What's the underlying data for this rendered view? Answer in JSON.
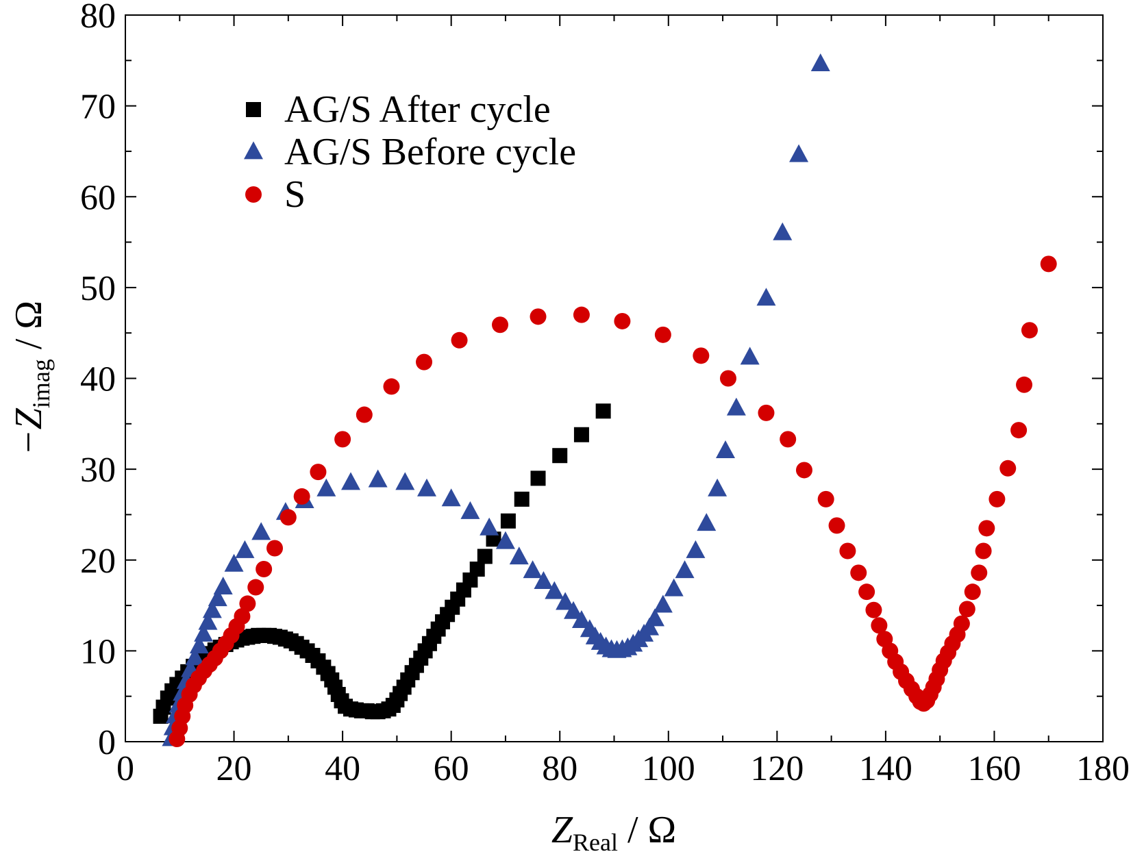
{
  "chart_data": {
    "type": "scatter",
    "title": "",
    "xlabel": {
      "main": "Z",
      "sub": "Real",
      "unit": " / Ω"
    },
    "ylabel": {
      "prefix": "−Z",
      "sub": "imag",
      "unit": " / Ω"
    },
    "xlim": [
      0,
      180
    ],
    "ylim": [
      0,
      80
    ],
    "xticks": [
      0,
      20,
      40,
      60,
      80,
      100,
      120,
      140,
      160,
      180
    ],
    "yticks": [
      0,
      10,
      20,
      30,
      40,
      50,
      60,
      70,
      80
    ],
    "grid": false,
    "legend_position": "top-left",
    "series": [
      {
        "name": "AG/S After cycle",
        "marker": "square",
        "color": "#000000",
        "points": [
          [
            6.5,
            2.8
          ],
          [
            7,
            3.8
          ],
          [
            7.8,
            4.8
          ],
          [
            8.6,
            5.6
          ],
          [
            9.5,
            6.3
          ],
          [
            10.5,
            7.0
          ],
          [
            11.5,
            7.7
          ],
          [
            12.5,
            8.3
          ],
          [
            13.5,
            8.8
          ],
          [
            14.5,
            9.3
          ],
          [
            15.5,
            9.7
          ],
          [
            16.5,
            10.1
          ],
          [
            17.5,
            10.4
          ],
          [
            18.5,
            10.7
          ],
          [
            19.5,
            11.0
          ],
          [
            20.5,
            11.2
          ],
          [
            21.5,
            11.4
          ],
          [
            22.5,
            11.5
          ],
          [
            23.5,
            11.6
          ],
          [
            24.5,
            11.7
          ],
          [
            25.5,
            11.7
          ],
          [
            26.5,
            11.7
          ],
          [
            27.5,
            11.6
          ],
          [
            28.5,
            11.5
          ],
          [
            29.5,
            11.3
          ],
          [
            30.5,
            11.1
          ],
          [
            31.5,
            10.8
          ],
          [
            32.5,
            10.4
          ],
          [
            33.5,
            10.0
          ],
          [
            34.5,
            9.5
          ],
          [
            35.5,
            8.9
          ],
          [
            36.5,
            8.2
          ],
          [
            37.3,
            7.5
          ],
          [
            38.0,
            6.8
          ],
          [
            38.6,
            6.0
          ],
          [
            39.2,
            5.2
          ],
          [
            39.8,
            4.5
          ],
          [
            40.5,
            3.9
          ],
          [
            41.5,
            3.6
          ],
          [
            42.5,
            3.5
          ],
          [
            43.5,
            3.4
          ],
          [
            44.5,
            3.4
          ],
          [
            45.5,
            3.3
          ],
          [
            46.5,
            3.3
          ],
          [
            47.5,
            3.4
          ],
          [
            48.5,
            3.6
          ],
          [
            49.3,
            4.0
          ],
          [
            50.0,
            4.6
          ],
          [
            50.6,
            5.3
          ],
          [
            51.3,
            6.0
          ],
          [
            52.0,
            6.8
          ],
          [
            52.8,
            7.6
          ],
          [
            53.6,
            8.4
          ],
          [
            54.4,
            9.2
          ],
          [
            55.2,
            10.0
          ],
          [
            56.0,
            10.8
          ],
          [
            56.8,
            11.6
          ],
          [
            57.6,
            12.4
          ],
          [
            58.4,
            13.2
          ],
          [
            59.3,
            14.0
          ],
          [
            60.2,
            14.8
          ],
          [
            61.2,
            15.7
          ],
          [
            62.3,
            16.7
          ],
          [
            63.5,
            17.8
          ],
          [
            64.8,
            19.0
          ],
          [
            66.2,
            20.4
          ],
          [
            67.8,
            22.3
          ],
          [
            70.5,
            24.3
          ],
          [
            73.0,
            26.7
          ],
          [
            76.0,
            29.0
          ],
          [
            80.0,
            31.5
          ],
          [
            84.0,
            33.8
          ],
          [
            88.0,
            36.4
          ]
        ]
      },
      {
        "name": "AG/S Before cycle",
        "marker": "triangle",
        "color": "#2e4a9c",
        "points": [
          [
            8.5,
            0.3
          ],
          [
            8.8,
            1.5
          ],
          [
            9.2,
            2.8
          ],
          [
            9.8,
            4.0
          ],
          [
            10.5,
            5.3
          ],
          [
            11.2,
            6.6
          ],
          [
            12.0,
            7.9
          ],
          [
            12.8,
            9.2
          ],
          [
            13.6,
            10.5
          ],
          [
            14.4,
            11.8
          ],
          [
            15.2,
            13.1
          ],
          [
            16.0,
            14.4
          ],
          [
            17.0,
            15.7
          ],
          [
            18.0,
            17.0
          ],
          [
            20.0,
            19.5
          ],
          [
            22.0,
            21.0
          ],
          [
            25.0,
            23.0
          ],
          [
            29.5,
            25.2
          ],
          [
            33.0,
            26.5
          ],
          [
            37.0,
            27.8
          ],
          [
            41.5,
            28.5
          ],
          [
            46.5,
            28.8
          ],
          [
            51.5,
            28.5
          ],
          [
            55.5,
            27.8
          ],
          [
            60.0,
            26.7
          ],
          [
            63.5,
            25.3
          ],
          [
            67.0,
            23.5
          ],
          [
            70.0,
            22.0
          ],
          [
            72.5,
            20.3
          ],
          [
            75.0,
            18.8
          ],
          [
            77.0,
            17.6
          ],
          [
            79.0,
            16.5
          ],
          [
            81.0,
            15.3
          ],
          [
            82.5,
            14.3
          ],
          [
            84.0,
            13.3
          ],
          [
            85.5,
            12.3
          ],
          [
            86.5,
            11.5
          ],
          [
            87.5,
            10.9
          ],
          [
            88.5,
            10.4
          ],
          [
            89.5,
            10.1
          ],
          [
            90.5,
            10.0
          ],
          [
            91.5,
            10.1
          ],
          [
            92.5,
            10.3
          ],
          [
            93.5,
            10.7
          ],
          [
            94.5,
            11.2
          ],
          [
            95.5,
            11.8
          ],
          [
            96.5,
            12.5
          ],
          [
            97.5,
            13.5
          ],
          [
            99.0,
            15.0
          ],
          [
            101.0,
            16.8
          ],
          [
            103.0,
            18.8
          ],
          [
            105.0,
            21.0
          ],
          [
            107.0,
            24.0
          ],
          [
            109.0,
            27.8
          ],
          [
            110.5,
            32.0
          ],
          [
            112.5,
            36.7
          ],
          [
            115.0,
            42.3
          ],
          [
            118.0,
            48.8
          ],
          [
            121.0,
            56.0
          ],
          [
            124.0,
            64.6
          ],
          [
            128.0,
            74.6
          ]
        ]
      },
      {
        "name": "S",
        "marker": "circle",
        "color": "#d40000",
        "points": [
          [
            9.5,
            0.3
          ],
          [
            10.0,
            1.5
          ],
          [
            10.5,
            2.8
          ],
          [
            11.0,
            4.0
          ],
          [
            11.8,
            5.2
          ],
          [
            12.6,
            6.2
          ],
          [
            13.5,
            7.0
          ],
          [
            14.5,
            7.8
          ],
          [
            15.5,
            8.5
          ],
          [
            16.5,
            9.2
          ],
          [
            17.5,
            10.0
          ],
          [
            18.5,
            10.8
          ],
          [
            19.5,
            11.7
          ],
          [
            20.5,
            12.7
          ],
          [
            21.5,
            13.8
          ],
          [
            22.5,
            15.2
          ],
          [
            24.0,
            17.0
          ],
          [
            25.5,
            19.0
          ],
          [
            27.5,
            21.3
          ],
          [
            30.0,
            24.7
          ],
          [
            32.5,
            27.0
          ],
          [
            35.5,
            29.7
          ],
          [
            40.0,
            33.3
          ],
          [
            44.0,
            36.0
          ],
          [
            49.0,
            39.1
          ],
          [
            55.0,
            41.8
          ],
          [
            61.5,
            44.2
          ],
          [
            69.0,
            45.9
          ],
          [
            76.0,
            46.8
          ],
          [
            84.0,
            47.0
          ],
          [
            91.5,
            46.3
          ],
          [
            99.0,
            44.8
          ],
          [
            106.0,
            42.5
          ],
          [
            111.0,
            40.0
          ],
          [
            118.0,
            36.2
          ],
          [
            122.0,
            33.3
          ],
          [
            125.0,
            29.9
          ],
          [
            129.0,
            26.7
          ],
          [
            131.0,
            23.8
          ],
          [
            133.0,
            21.0
          ],
          [
            135.0,
            18.6
          ],
          [
            136.5,
            16.5
          ],
          [
            137.8,
            14.5
          ],
          [
            138.8,
            12.8
          ],
          [
            139.8,
            11.3
          ],
          [
            140.8,
            10.0
          ],
          [
            141.8,
            8.8
          ],
          [
            142.8,
            7.7
          ],
          [
            143.8,
            6.7
          ],
          [
            144.8,
            5.8
          ],
          [
            145.7,
            5.0
          ],
          [
            146.4,
            4.4
          ],
          [
            147.0,
            4.2
          ],
          [
            147.6,
            4.5
          ],
          [
            148.2,
            5.2
          ],
          [
            148.8,
            6.0
          ],
          [
            149.4,
            6.9
          ],
          [
            150.0,
            7.9
          ],
          [
            150.7,
            8.9
          ],
          [
            151.5,
            9.8
          ],
          [
            152.3,
            10.8
          ],
          [
            153.2,
            11.8
          ],
          [
            154.0,
            13.0
          ],
          [
            155.0,
            14.6
          ],
          [
            156.0,
            16.5
          ],
          [
            157.2,
            18.6
          ],
          [
            158.0,
            21.0
          ],
          [
            158.6,
            23.5
          ],
          [
            160.5,
            26.7
          ],
          [
            162.5,
            30.1
          ],
          [
            164.5,
            34.3
          ],
          [
            165.5,
            39.3
          ],
          [
            166.5,
            45.3
          ],
          [
            170.0,
            52.6
          ]
        ]
      }
    ]
  }
}
